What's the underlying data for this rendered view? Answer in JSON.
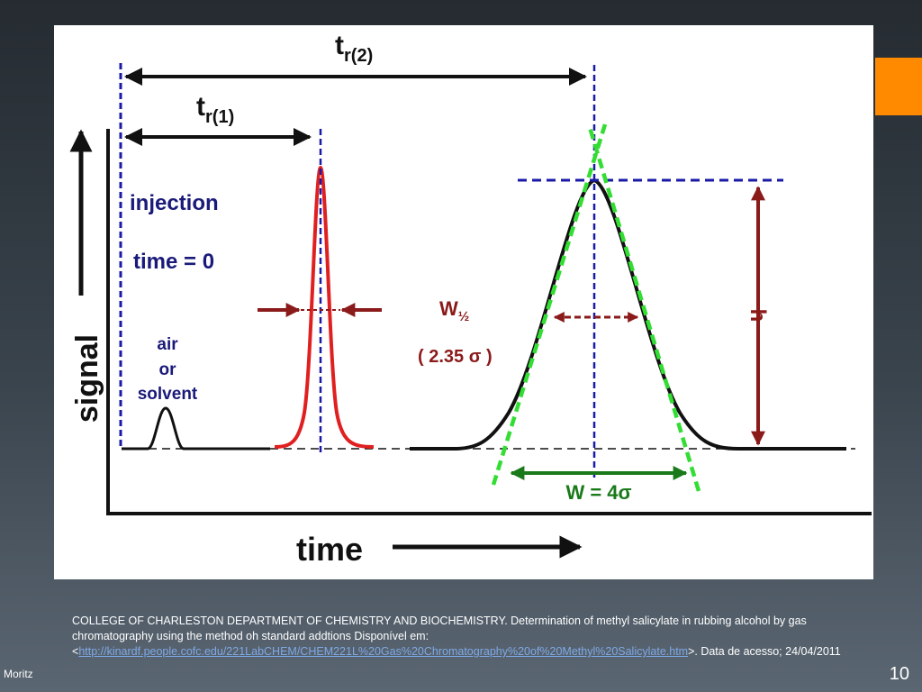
{
  "diagram": {
    "retention_time_2": {
      "main": "t",
      "sub": "r(2)"
    },
    "retention_time_1": {
      "main": "t",
      "sub": "r(1)"
    },
    "y_axis_label": "signal",
    "x_axis_label": "time",
    "injection_label": "injection",
    "time_zero_label": "time = 0",
    "air_solvent_label": [
      "air",
      "or",
      "solvent"
    ],
    "half_width_label": {
      "main": "W",
      "sub": "½"
    },
    "half_width_value": "( 2.35 σ )",
    "width_label": "W = 4σ",
    "height_label": "h",
    "colors": {
      "red_peak": "#e02020",
      "dark_red": "#8b1a1a",
      "blue_dashed": "#1a1aa8",
      "green_dashed": "#33dd33",
      "green_arrow": "#1a7a1a"
    }
  },
  "caption": {
    "text_before_link": "COLLEGE OF CHARLESTON DEPARTMENT OF CHEMISTRY AND BIOCHEMISTRY. Determination of methyl salicylate in rubbing alcohol by gas chromatography using the method oh standard addtions Disponível em:<",
    "link_text": "http://kinardf.people.cofc.edu/221LabCHEM/CHEM221L%20Gas%20Chromatography%20of%20Methyl%20Salicylate.htm",
    "text_after_link": ">. Data de acesso; 24/04/2011"
  },
  "footer": {
    "author": "Moritz",
    "page_number": "10"
  },
  "accent_color": "#ff8a00"
}
